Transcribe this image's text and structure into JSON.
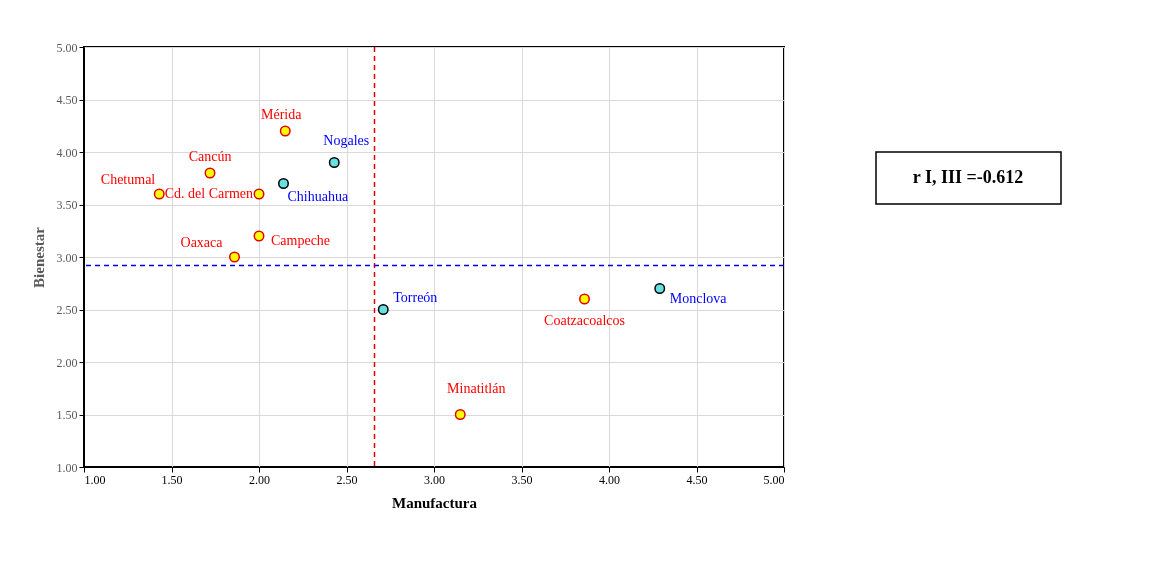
{
  "chart_data": {
    "type": "scatter",
    "xlabel": "Manufactura",
    "ylabel": "Bienestar",
    "series": [
      {
        "color": "#ffff00",
        "x": [
          1.43,
          1.72,
          2.15,
          2.0,
          2.0,
          1.86,
          3.15,
          3.86
        ],
        "values": [
          3.6,
          3.8,
          4.2,
          3.6,
          3.2,
          3.0,
          1.5,
          2.6
        ]
      },
      {
        "color": "#66e0e0",
        "x": [
          2.43,
          2.14,
          2.71,
          4.29
        ],
        "values": [
          3.9,
          3.7,
          2.5,
          2.7
        ]
      }
    ],
    "marker": "circle",
    "xlim": [
      1,
      5
    ],
    "ylim": [
      1,
      5
    ],
    "xticks": [
      {
        "value": 1,
        "label": "1.00"
      },
      {
        "value": 1.5,
        "label": "1.50"
      },
      {
        "value": 2,
        "label": "2.00"
      },
      {
        "value": 2.5,
        "label": "2.50"
      },
      {
        "value": 3,
        "label": "3.00"
      },
      {
        "value": 3.5,
        "label": "3.50"
      },
      {
        "value": 4,
        "label": "4.00"
      },
      {
        "value": 4.5,
        "label": "4.50"
      },
      {
        "value": 5,
        "label": "5.00"
      }
    ],
    "yticks": [
      {
        "value": 1,
        "label": "1.00"
      },
      {
        "value": 1.5,
        "label": "1.50"
      },
      {
        "value": 2,
        "label": "2.00"
      },
      {
        "value": 2.5,
        "label": "2.50"
      },
      {
        "value": 3,
        "label": "3.00"
      },
      {
        "value": 3.5,
        "label": "3.50"
      },
      {
        "value": 4,
        "label": "4.00"
      },
      {
        "value": 4.5,
        "label": "4.50"
      },
      {
        "value": 5,
        "label": "5.00"
      }
    ],
    "grid": true,
    "ref_lines": [
      {
        "axis": "x",
        "value": 2.66,
        "color": "#e00000",
        "line_style": "dashed"
      },
      {
        "axis": "y",
        "value": 2.92,
        "color": "#0000e0",
        "line_style": "dashed"
      }
    ],
    "annotations": [
      {
        "text": "Chetumal",
        "x": 1.43,
        "y": 3.6
      },
      {
        "text": "Cancún",
        "x": 1.72,
        "y": 3.8
      },
      {
        "text": "Mérida",
        "x": 2.15,
        "y": 4.2
      },
      {
        "text": "Cd. del Carmen",
        "x": 2.0,
        "y": 3.6
      },
      {
        "text": "Campeche",
        "x": 2.0,
        "y": 3.2
      },
      {
        "text": "Oaxaca",
        "x": 1.86,
        "y": 3.0
      },
      {
        "text": "Minatitlán",
        "x": 3.15,
        "y": 1.5
      },
      {
        "text": "Coatzacoalcos",
        "x": 3.86,
        "y": 2.6
      },
      {
        "text": "Nogales",
        "x": 2.43,
        "y": 3.9
      },
      {
        "text": "Chihuahua",
        "x": 2.14,
        "y": 3.7
      },
      {
        "text": "Torreón",
        "x": 2.71,
        "y": 2.5
      },
      {
        "text": "Monclova",
        "x": 4.29,
        "y": 2.7
      },
      "r I, III =-0.612"
    ]
  }
}
